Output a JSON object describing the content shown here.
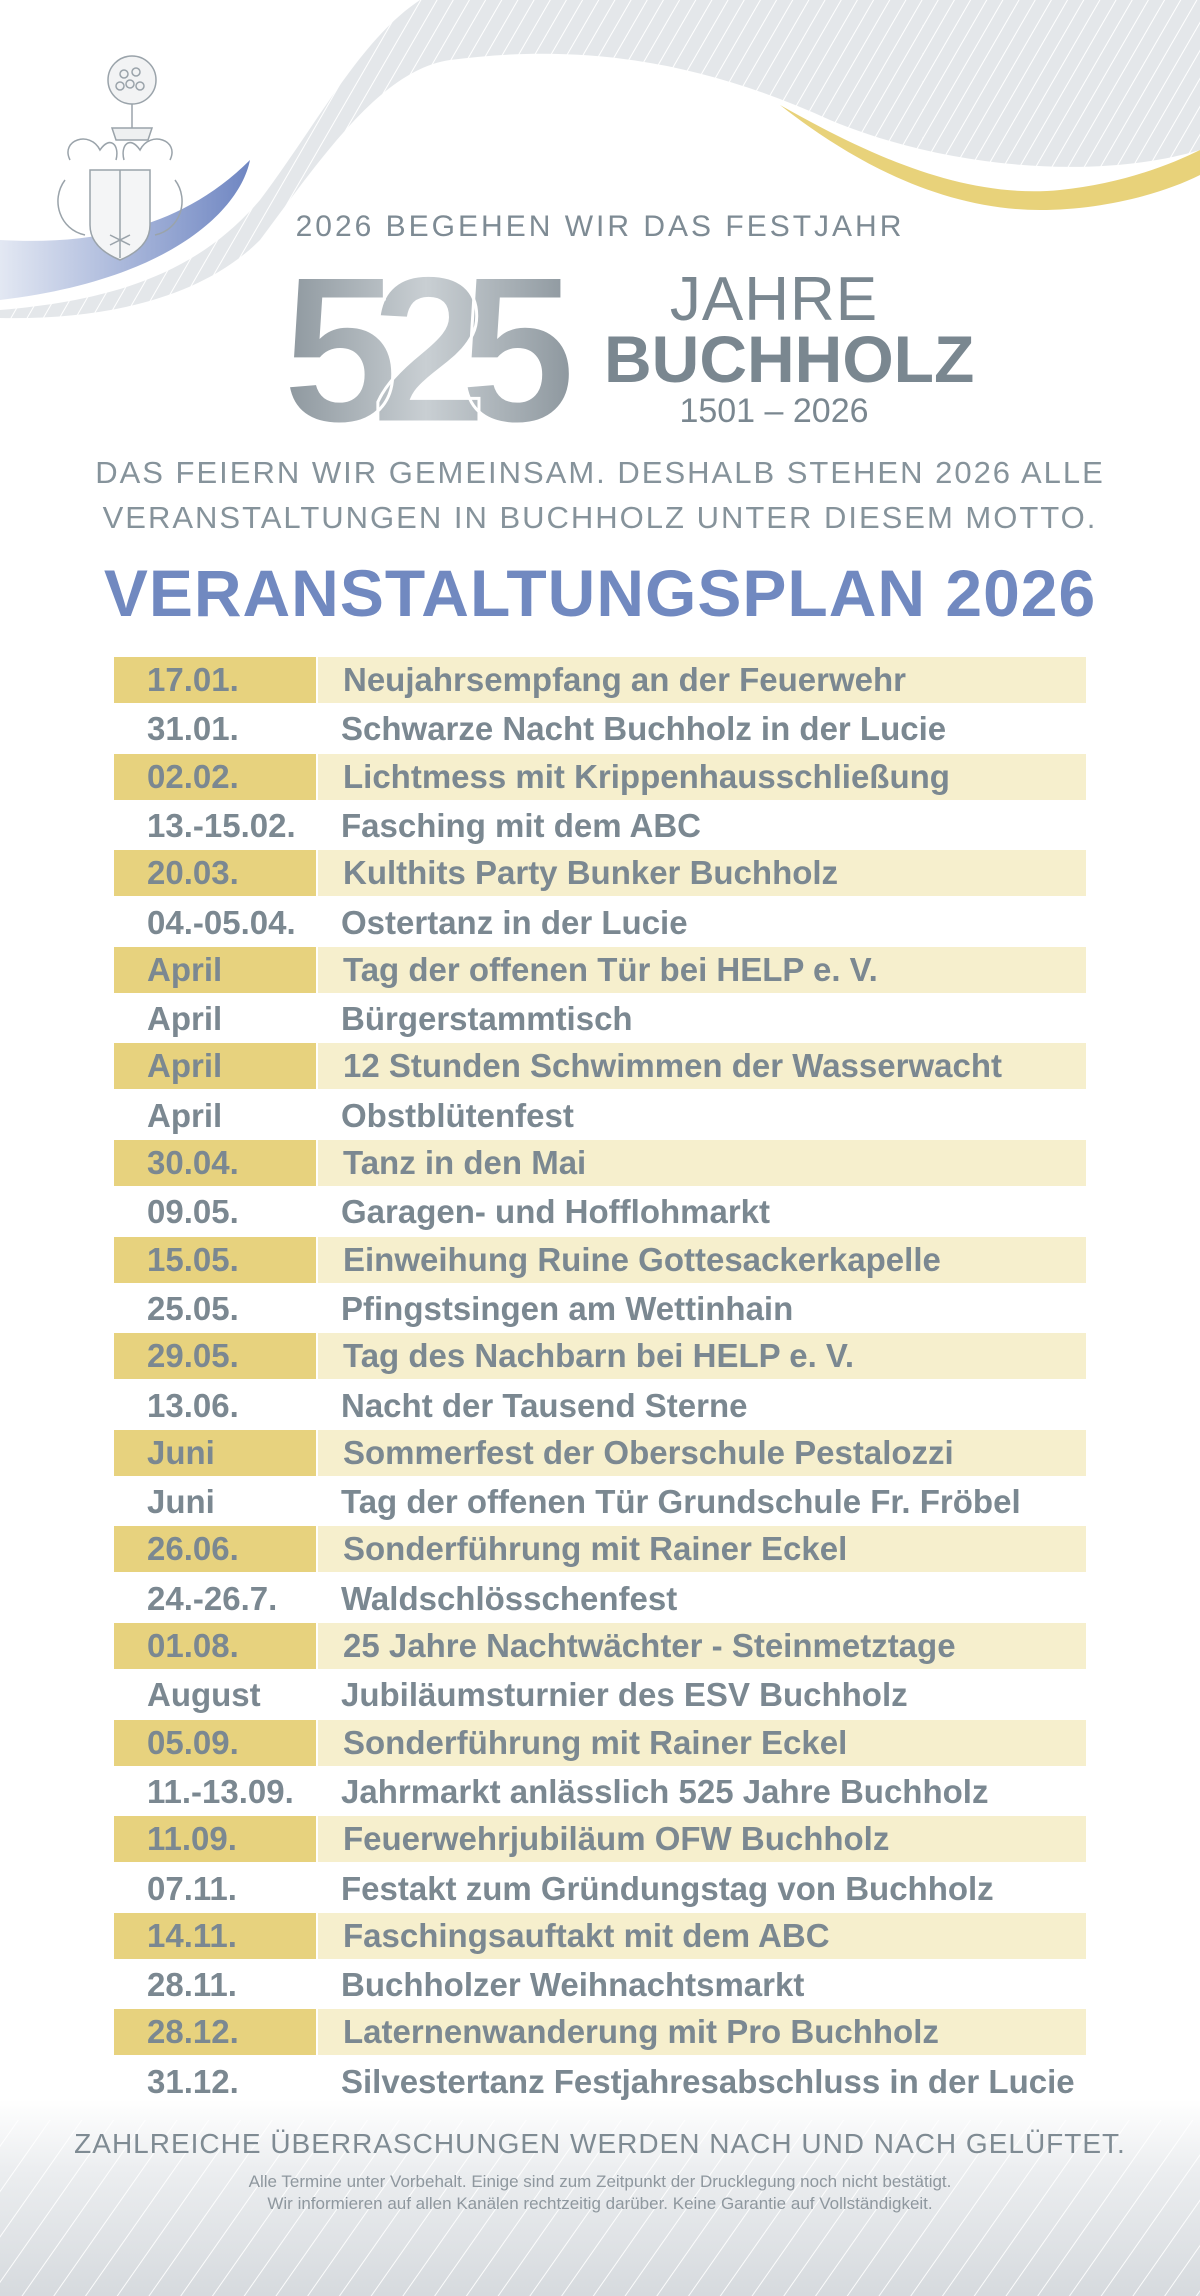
{
  "header": {
    "subtitle": "2026 BEGEHEN  WIR  DAS  FESTJAHR",
    "logo_number": "525",
    "logo_word1": "JAHRE",
    "logo_word2": "BUCHHOLZ",
    "logo_years": "1501 – 2026",
    "motto_line1": "DAS FEIERN WIR GEMEINSAM. DESHALB STEHEN 2026 ALLE",
    "motto_line2": "VERANSTALTUNGEN IN BUCHHOLZ UNTER DIESEM MOTTO.",
    "plan_title": "VERANSTALTUNGSPLAN 2026",
    "icons": [
      "coat-of-arms-icon"
    ]
  },
  "colors": {
    "title_blue": "#7189c0",
    "text_gray": "#7b8891",
    "date_gold": "#e7d27e",
    "event_cream": "#f6efcd",
    "wave_gold": "#e8d27a",
    "wave_blue": "#6f86c2"
  },
  "events": [
    {
      "date": "17.01.",
      "title": "Neujahrsempfang an der Feuerwehr"
    },
    {
      "date": "31.01.",
      "title": "Schwarze Nacht Buchholz in der Lucie"
    },
    {
      "date": "02.02.",
      "title": "Lichtmess mit Krippenhausschließung"
    },
    {
      "date": "13.-15.02.",
      "title": "Fasching mit dem ABC"
    },
    {
      "date": "20.03.",
      "title": "Kulthits Party Bunker Buchholz"
    },
    {
      "date": "04.-05.04.",
      "title": "Ostertanz in der Lucie"
    },
    {
      "date": "April",
      "title": "Tag der offenen Tür bei HELP e. V."
    },
    {
      "date": "April",
      "title": "Bürgerstammtisch"
    },
    {
      "date": "April",
      "title": "12 Stunden Schwimmen der Wasserwacht"
    },
    {
      "date": "April",
      "title": "Obstblütenfest"
    },
    {
      "date": "30.04.",
      "title": "Tanz in den Mai"
    },
    {
      "date": "09.05.",
      "title": "Garagen- und Hofflohmarkt"
    },
    {
      "date": "15.05.",
      "title": "Einweihung Ruine Gottesackerkapelle"
    },
    {
      "date": "25.05.",
      "title": "Pfingstsingen am Wettinhain"
    },
    {
      "date": "29.05.",
      "title": "Tag des Nachbarn bei HELP e. V."
    },
    {
      "date": "13.06.",
      "title": "Nacht der Tausend Sterne"
    },
    {
      "date": "Juni",
      "title": "Sommerfest der Oberschule Pestalozzi"
    },
    {
      "date": "Juni",
      "title": "Tag der offenen Tür Grundschule Fr. Fröbel"
    },
    {
      "date": "26.06.",
      "title": "Sonderführung mit Rainer Eckel"
    },
    {
      "date": "24.-26.7.",
      "title": "Waldschlösschenfest"
    },
    {
      "date": "01.08.",
      "title": "25 Jahre Nachtwächter - Steinmetztage"
    },
    {
      "date": "August",
      "title": "Jubiläumsturnier des ESV Buchholz"
    },
    {
      "date": "05.09.",
      "title": "Sonderführung mit Rainer Eckel"
    },
    {
      "date": "11.-13.09.",
      "title": "Jahrmarkt anlässlich 525 Jahre Buchholz"
    },
    {
      "date": "11.09.",
      "title": "Feuerwehrjubiläum OFW Buchholz"
    },
    {
      "date": "07.11.",
      "title": "Festakt zum Gründungstag von Buchholz"
    },
    {
      "date": "14.11.",
      "title": "Faschingsauftakt mit dem ABC"
    },
    {
      "date": "28.11.",
      "title": "Buchholzer Weihnachtsmarkt"
    },
    {
      "date": "28.12.",
      "title": "Laternenwanderung mit Pro Buchholz"
    },
    {
      "date": "31.12.",
      "title": "Silvestertanz Festjahresabschluss in der Lucie"
    }
  ],
  "footer": {
    "surprise": "ZAHLREICHE ÜBERRASCHUNGEN WERDEN NACH UND NACH GELÜFTET.",
    "note_line1": "Alle Termine unter Vorbehalt. Einige sind zum Zeitpunkt der Drucklegung noch nicht bestätigt.",
    "note_line2": "Wir informieren auf allen Kanälen rechtzeitig darüber. Keine Garantie auf Vollständigkeit."
  }
}
